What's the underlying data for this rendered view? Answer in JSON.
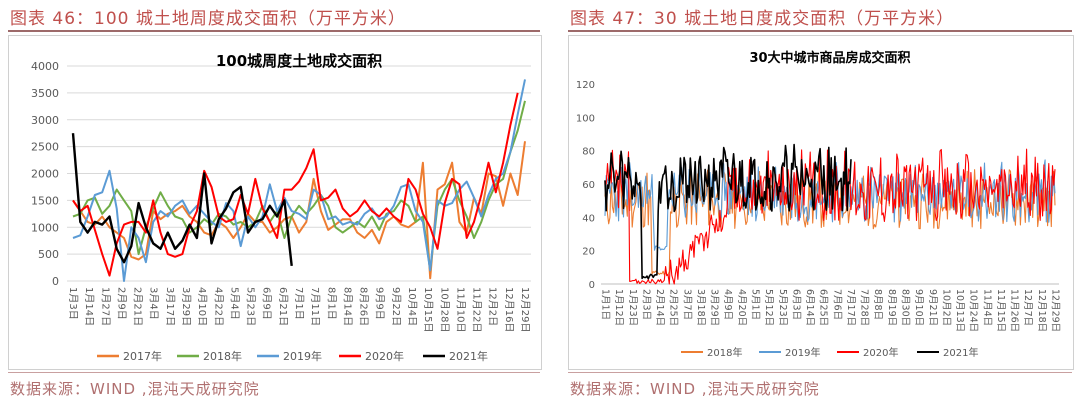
{
  "left": {
    "heading": "图表 46：100 城土地周度成交面积（万平方米）",
    "source": "数据来源：WIND ,混沌天成研究院",
    "chart_data": {
      "type": "line",
      "title": "100城周度土地成交面积",
      "ylim": [
        0,
        4000
      ],
      "yticks": [
        "0",
        "500",
        "1000",
        "1500",
        "2000",
        "2500",
        "3000",
        "3500",
        "4000"
      ],
      "xticks": [
        "1月3日",
        "1月14日",
        "1月27日",
        "2月9日",
        "2月21日",
        "3月4日",
        "3月17日",
        "3月29日",
        "4月10日",
        "4月22日",
        "5月4日",
        "5月23日",
        "6月9日",
        "6月21日",
        "7月1日",
        "7月11日",
        "8月1日",
        "8月14日",
        "8月26日",
        "9月9日",
        "9月22日",
        "10月4日",
        "10月15日",
        "10月28日",
        "11月10日",
        "11月22日",
        "12月2日",
        "12月16日",
        "12月29日"
      ],
      "series": [
        {
          "name": "2017年",
          "color": "#ed7d31",
          "values": [
            1500,
            1300,
            1100,
            1050,
            1200,
            1000,
            900,
            800,
            450,
            400,
            500,
            1300,
            1150,
            1250,
            1300,
            1400,
            1200,
            1100,
            900,
            850,
            1100,
            1000,
            800,
            1000,
            1250,
            1100,
            1100,
            900,
            1000,
            1150,
            1200,
            900,
            1100,
            1900,
            1300,
            950,
            1050,
            1150,
            1150,
            900,
            800,
            950,
            700,
            1100,
            1200,
            1050,
            1000,
            1100,
            2200,
            50,
            1700,
            1800,
            2200,
            1100,
            900,
            1550,
            1250,
            2000,
            1950,
            1400,
            2000,
            1600,
            2600
          ]
        },
        {
          "name": "2018年",
          "color": "#70ad47",
          "values": [
            1200,
            1250,
            1500,
            1550,
            1250,
            1400,
            1700,
            1500,
            1300,
            500,
            1000,
            1350,
            1650,
            1400,
            1200,
            1150,
            900,
            1000,
            1150,
            1050,
            1250,
            1200,
            1050,
            1100,
            1000,
            1100,
            1400,
            1100,
            1300,
            800,
            1200,
            1400,
            1250,
            1400,
            1600,
            1400,
            1000,
            900,
            1000,
            1100,
            1000,
            1200,
            950,
            1250,
            1300,
            1500,
            1400,
            1100,
            1200,
            200,
            1400,
            1700,
            1900,
            1500,
            1200,
            800,
            1100,
            1500,
            1800,
            1900,
            2400,
            2800,
            3350
          ]
        },
        {
          "name": "2019年",
          "color": "#5b9bd5",
          "values": [
            800,
            850,
            1200,
            1600,
            1650,
            2050,
            1350,
            0,
            1000,
            800,
            350,
            1100,
            1300,
            1200,
            1400,
            1500,
            1250,
            1400,
            1250,
            1100,
            1000,
            1450,
            1300,
            650,
            1200,
            1000,
            1200,
            1800,
            1300,
            1550,
            1300,
            1250,
            1150,
            1700,
            1600,
            1150,
            1200,
            1050,
            1100,
            1050,
            1250,
            1350,
            1150,
            1200,
            1400,
            1750,
            1800,
            1300,
            1100,
            200,
            1500,
            1400,
            1450,
            1700,
            1850,
            1550,
            1200,
            1600,
            1900,
            2000,
            2400,
            3100,
            3750
          ]
        },
        {
          "name": "2020年",
          "color": "#ff0000",
          "values": [
            1500,
            1300,
            1400,
            950,
            500,
            100,
            700,
            1050,
            1100,
            1100,
            900,
            1500,
            900,
            500,
            450,
            500,
            1000,
            1300,
            2050,
            1750,
            1200,
            1100,
            1150,
            1600,
            1250,
            1900,
            1350,
            1100,
            800,
            1700,
            1700,
            1850,
            2100,
            2450,
            1500,
            1550,
            1700,
            1350,
            1200,
            1300,
            1500,
            1300,
            1200,
            1350,
            1200,
            1100,
            1900,
            1700,
            1250,
            1000,
            600,
            1450,
            1900,
            1800,
            800,
            1100,
            1600,
            2200,
            1650,
            2200,
            2900,
            3500
          ]
        },
        {
          "name": "2021年",
          "color": "#000000",
          "values": [
            2750,
            1100,
            900,
            1100,
            1050,
            1200,
            600,
            350,
            650,
            1450,
            1000,
            700,
            600,
            900,
            600,
            750,
            1050,
            800,
            2000,
            700,
            1150,
            1350,
            1650,
            1750,
            900,
            1100,
            1150,
            1400,
            1200,
            1500,
            280
          ]
        }
      ]
    }
  },
  "right": {
    "heading": "图表 47：30 城土地日度成交面积（万平方米）",
    "source": "数据来源：WIND ,混沌天成研究院",
    "chart_data": {
      "type": "line",
      "title": "30大中城市商品房成交面积",
      "ylim": [
        0,
        120
      ],
      "yticks": [
        "0",
        "20",
        "40",
        "60",
        "80",
        "100",
        "120"
      ],
      "xticks": [
        "1月1日",
        "1月12日",
        "1月23日",
        "2月3日",
        "2月14日",
        "2月25日",
        "3月7日",
        "3月18日",
        "3月29日",
        "4月9日",
        "4月20日",
        "5月1日",
        "5月12日",
        "5月23日",
        "6月3日",
        "6月14日",
        "6月25日",
        "7月6日",
        "7月17日",
        "7月28日",
        "8月8日",
        "8月19日",
        "8月30日",
        "9月10日",
        "9月21日",
        "10月2日",
        "10月13日",
        "10月24日",
        "11月4日",
        "11月15日",
        "11月26日",
        "12月7日",
        "12月18日",
        "12月29日"
      ],
      "legend": [
        "2018年",
        "2019年",
        "2020年",
        "2021年"
      ],
      "colors": [
        "#ed7d31",
        "#5b9bd5",
        "#ff0000",
        "#000000"
      ],
      "series_note": "daily values, noisy; ~40-70 band, 2020 dip to ~0 during late Jan-Feb, 2021 ends mid-July"
    }
  }
}
